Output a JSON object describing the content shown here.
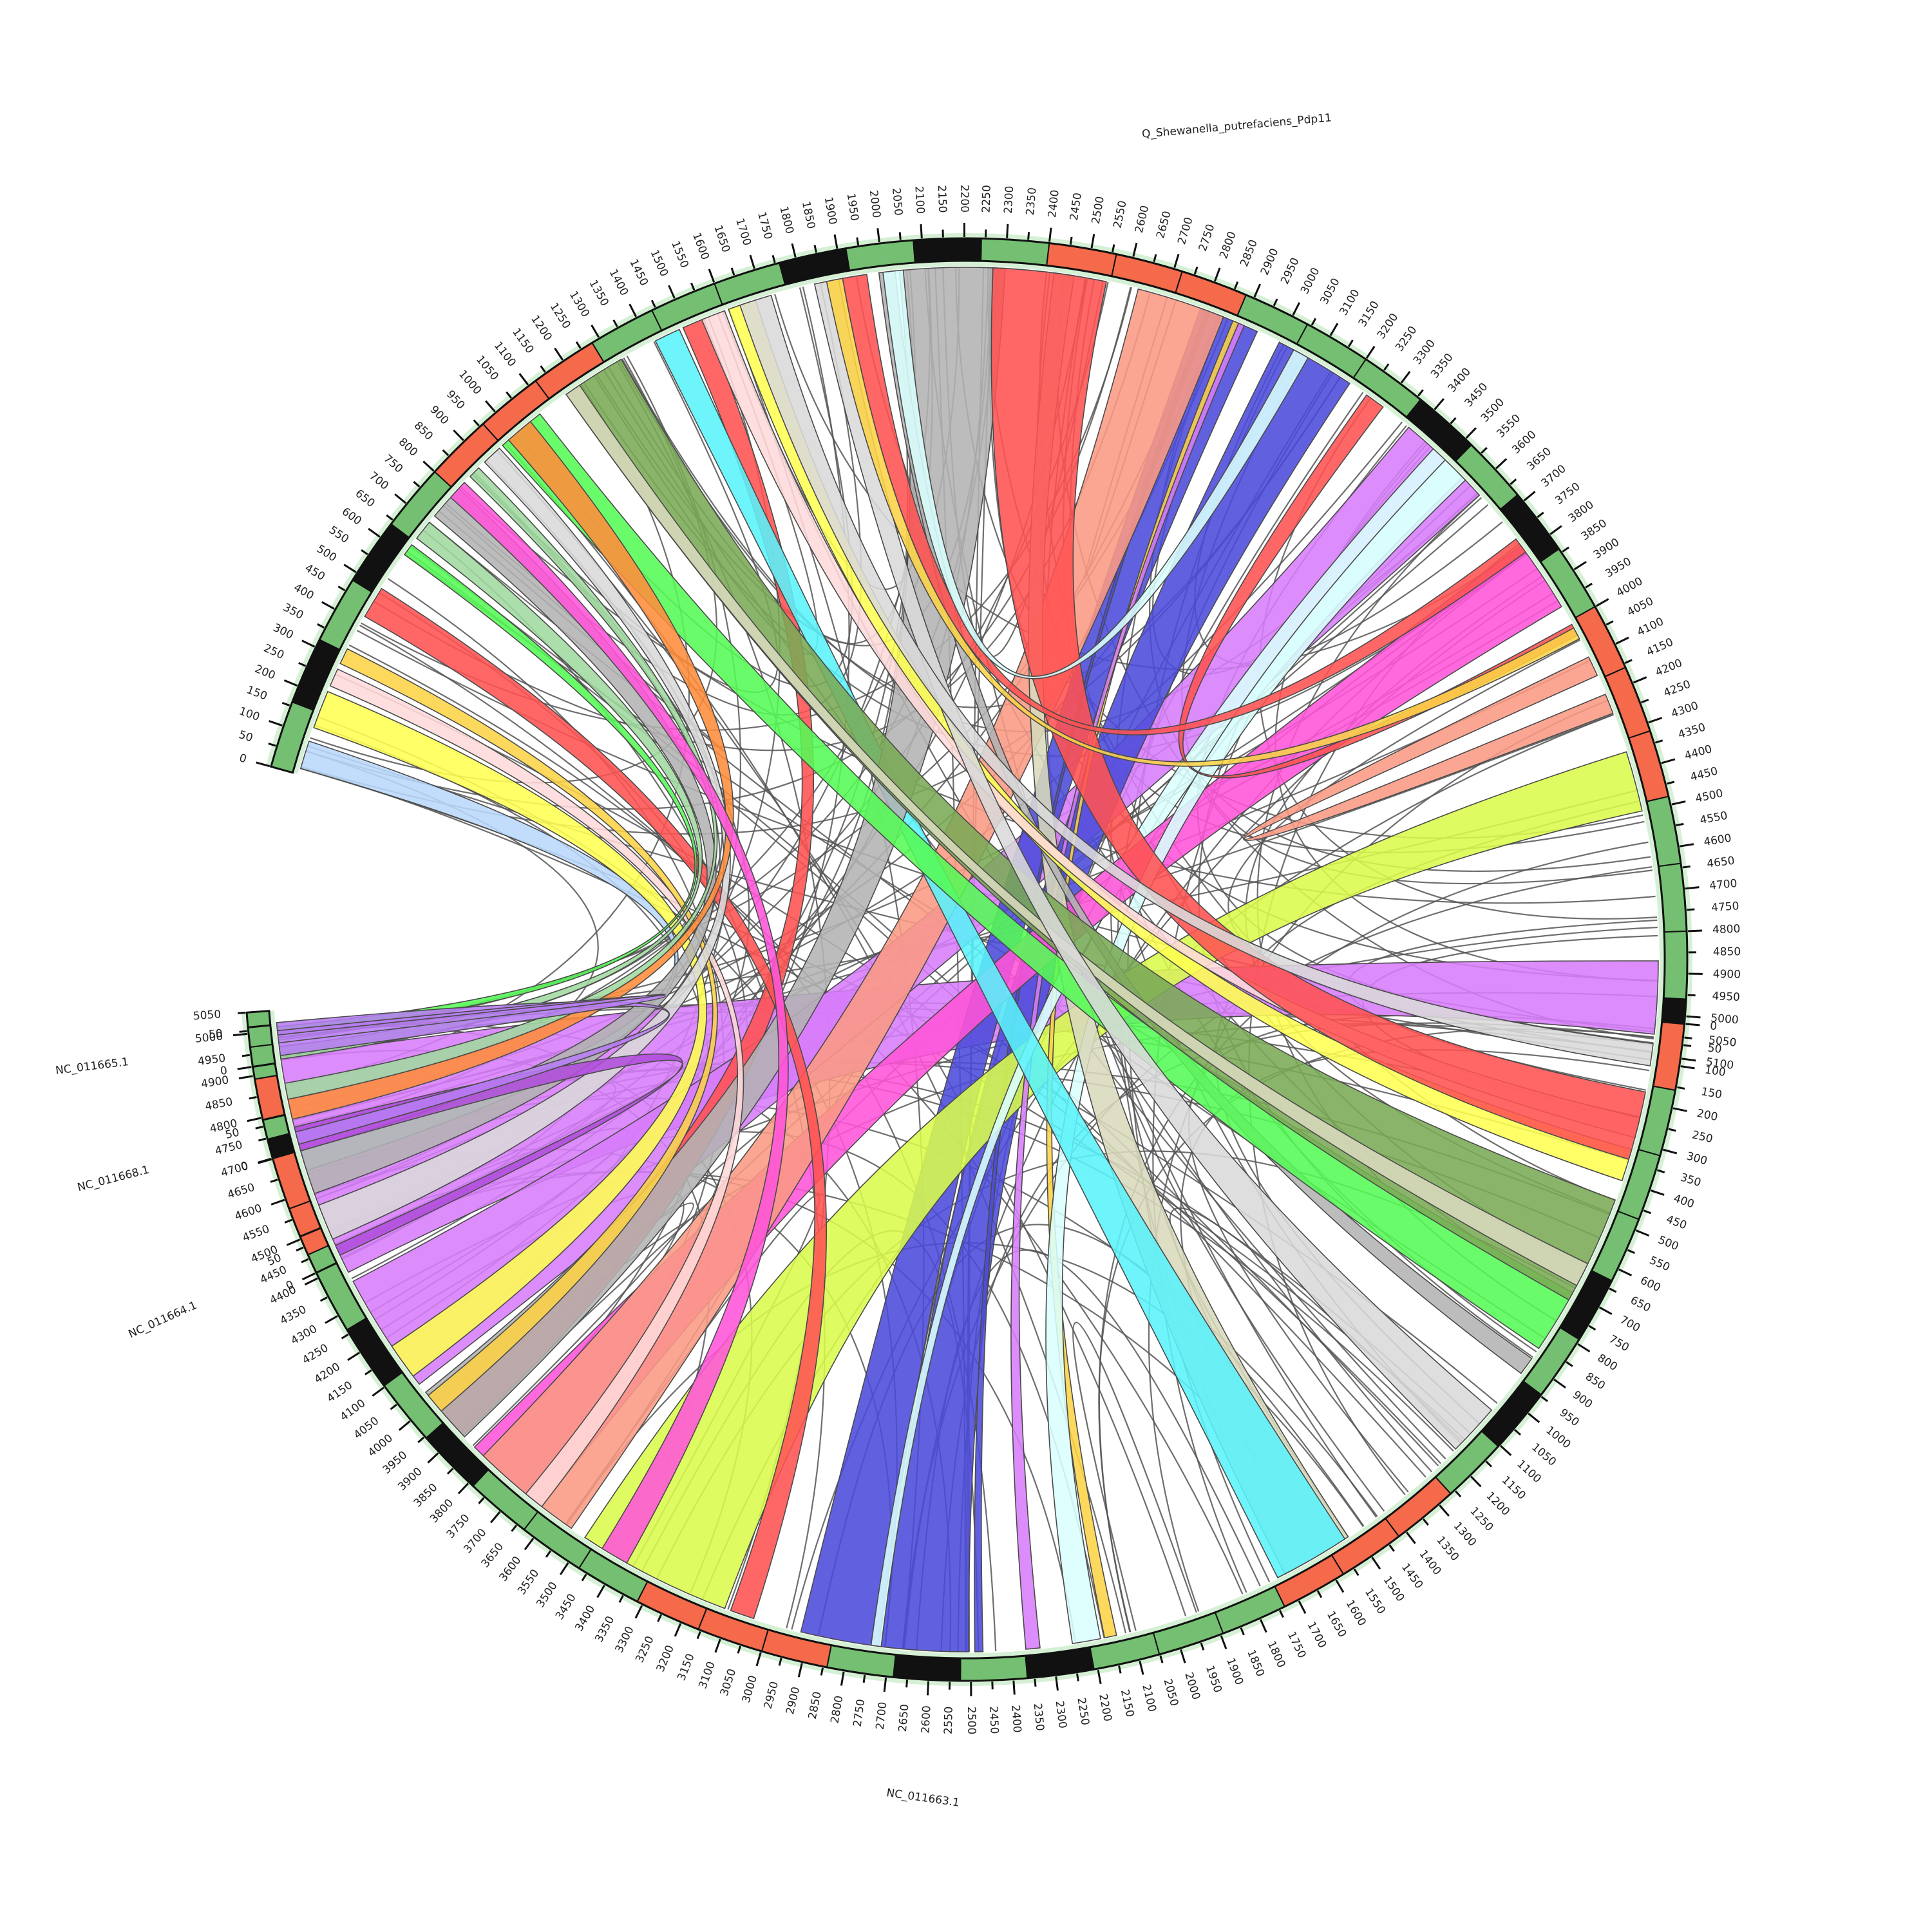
{
  "title": "",
  "colors": {
    "green": "#74bf72",
    "red": "#f46a4a",
    "black": "#111111",
    "background": "#ffffff",
    "chord_edge": "#4a4a4a",
    "thin_link": "#555555"
  },
  "sequences": [
    {
      "name": "Q_Shewanella_putrefaciens_Pdp11",
      "length": 5120
    },
    {
      "name": "NC_011663.1",
      "length": 5050
    },
    {
      "name": "NC_011664.1",
      "length": 70
    },
    {
      "name": "NC_011668.1",
      "length": 60
    },
    {
      "name": "NC_011665.1",
      "length": 55
    }
  ],
  "tick_interval": 50,
  "chart_data": {
    "type": "chord",
    "title": "",
    "ribbon_note_units": "sequence coordinates (kb)",
    "ribbons": [
      {
        "a": [
          0,
          4870,
          5050
        ],
        "b": [
          1,
          4380,
          4935
        ],
        "color": "#d77cfb"
      },
      {
        "a": [
          0,
          3380,
          3620
        ],
        "b": [
          1,
          4055,
          4355
        ],
        "color": "#d77cfb"
      },
      {
        "a": [
          0,
          2790,
          2940
        ],
        "b": [
          1,
          2725,
          2920
        ],
        "color": "#4b4bdb"
      },
      {
        "a": [
          0,
          3000,
          3200
        ],
        "b": [
          1,
          2505,
          2720
        ],
        "color": "#4b4bdb"
      },
      {
        "a": [
          0,
          2805,
          2815
        ],
        "b": [
          1,
          2470,
          2490
        ],
        "color": "#4b4bdb"
      },
      {
        "a": [
          0,
          4350,
          4500
        ],
        "b": [
          1,
          3115,
          3500
        ],
        "color": "#d9fc4c"
      },
      {
        "a": [
          0,
          2875,
          2890
        ],
        "b": [
          1,
          2140,
          2170
        ],
        "color": "#fcd347"
      },
      {
        "a": [
          0,
          2890,
          2905
        ],
        "b": [
          1,
          2330,
          2365
        ],
        "color": "#d77cfb"
      },
      {
        "a": [
          0,
          3460,
          3560
        ],
        "b": [
          1,
          2720,
          2745
        ],
        "color": "#d9fffe"
      },
      {
        "a": [
          0,
          3780,
          3960
        ],
        "b": [
          1,
          3630,
          3850
        ],
        "color": "#ff54d8"
      },
      {
        "a": [
          0,
          2630,
          2850
        ],
        "b": [
          1,
          3540,
          3820
        ],
        "color": "#fa9a84"
      },
      {
        "a": [
          0,
          1490,
          1545
        ],
        "b": [
          1,
          3890,
          4015
        ],
        "color": "#ff5252"
      },
      {
        "a": [
          0,
          3500,
          3570
        ],
        "b": [
          1,
          2180,
          2250
        ],
        "color": "#d9fffe"
      },
      {
        "a": [
          0,
          2420,
          2470
        ],
        "b": [
          1,
          1520,
          1700
        ],
        "color": "#d8dabc"
      },
      {
        "a": [
          0,
          1415,
          1480
        ],
        "b": [
          1,
          1530,
          1720
        ],
        "color": "#5af2fa"
      },
      {
        "a": [
          0,
          2040,
          2300
        ],
        "b": [
          1,
          3885,
          4030
        ],
        "color": "#b3b3b3"
      },
      {
        "a": [
          0,
          1990,
          2030
        ],
        "b": [
          1,
          890,
          935
        ],
        "color": "#b3b3b3"
      },
      {
        "a": [
          0,
          960,
          1080
        ],
        "b": [
          1,
          700,
          860
        ],
        "color": "#55fb55"
      },
      {
        "a": [
          0,
          1160,
          1320
        ],
        "b": [
          1,
          450,
          720
        ],
        "color": "#7aaa55"
      },
      {
        "a": [
          0,
          1160,
          1200
        ],
        "b": [
          1,
          620,
          680
        ],
        "color": "#d8dabc"
      },
      {
        "a": [
          0,
          1610,
          1680
        ],
        "b": [
          1,
          320,
          400
        ],
        "color": "#ffff52"
      },
      {
        "a": [
          0,
          1540,
          1600
        ],
        "b": [
          1,
          240,
          290
        ],
        "color": "#fed9d9"
      },
      {
        "a": [
          0,
          2270,
          2550
        ],
        "b": [
          1,
          175,
          345
        ],
        "color": "#ff5252"
      },
      {
        "a": [
          0,
          1830,
          1890
        ],
        "b": [
          1,
          1050,
          1180
        ],
        "color": "#d9d9d9"
      },
      {
        "a": [
          0,
          1640,
          1720
        ],
        "b": [
          1,
          55,
          110
        ],
        "color": "#d9d9d9"
      },
      {
        "a": [
          0,
          15,
          85
        ],
        "b": [
          1,
          4650,
          4700
        ],
        "color": "#b8d8fa"
      },
      {
        "a": [
          0,
          120,
          215
        ],
        "b": [
          1,
          4080,
          4170
        ],
        "color": "#ffff52"
      },
      {
        "a": [
          0,
          230,
          275
        ],
        "b": [
          1,
          3630,
          3680
        ],
        "color": "#fed9d9"
      },
      {
        "a": [
          0,
          290,
          330
        ],
        "b": [
          1,
          3970,
          4020
        ],
        "color": "#fcd347"
      },
      {
        "a": [
          0,
          420,
          500
        ],
        "b": [
          1,
          3040,
          3100
        ],
        "color": "#ff5252"
      },
      {
        "a": [
          0,
          720,
          810
        ],
        "b": [
          1,
          4590,
          4700
        ],
        "color": "#b3b3b3"
      },
      {
        "a": [
          0,
          900,
          950
        ],
        "b": [
          1,
          4470,
          4560
        ],
        "color": "#d9d9d9"
      },
      {
        "a": [
          0,
          850,
          880
        ],
        "b": [
          1,
          4830,
          4870
        ],
        "color": "#9fd99f"
      },
      {
        "a": [
          0,
          980,
          1050
        ],
        "b": [
          1,
          4780,
          4830
        ],
        "color": "#ff8c3a"
      },
      {
        "a": [
          0,
          780,
          830
        ],
        "b": [
          1,
          3380,
          3450
        ],
        "color": "#ff54d8"
      },
      {
        "a": [
          0,
          650,
          700
        ],
        "b": [
          1,
          4930,
          4960
        ],
        "color": "#9fd99f"
      },
      {
        "a": [
          0,
          600,
          630
        ],
        "b": [
          1,
          4990,
          5010
        ],
        "color": "#55fb55"
      },
      {
        "a": [
          2,
          10,
          30
        ],
        "b": [
          1,
          4700,
          4760
        ],
        "color": "#b04ddb"
      },
      {
        "a": [
          3,
          10,
          30
        ],
        "b": [
          1,
          4990,
          5020
        ],
        "color": "#b77cf3"
      },
      {
        "a": [
          4,
          10,
          40
        ],
        "b": [
          1,
          4970,
          5000
        ],
        "color": "#b77cf3"
      },
      {
        "a": [
          0,
          3250,
          3300
        ],
        "b": [
          0,
          4010,
          4040
        ],
        "color": "#ff5252"
      },
      {
        "a": [
          0,
          1860,
          1900
        ],
        "b": [
          0,
          4020,
          4050
        ],
        "color": "#fcd347"
      },
      {
        "a": [
          0,
          1900,
          1960
        ],
        "b": [
          0,
          3760,
          3800
        ],
        "color": "#ff5252"
      },
      {
        "a": [
          0,
          2000,
          2050
        ],
        "b": [
          0,
          3040,
          3080
        ],
        "color": "#d9fffe"
      },
      {
        "a": [
          0,
          4100,
          4150
        ],
        "b": [
          0,
          4200,
          4250
        ],
        "color": "#fa9a84"
      }
    ]
  }
}
